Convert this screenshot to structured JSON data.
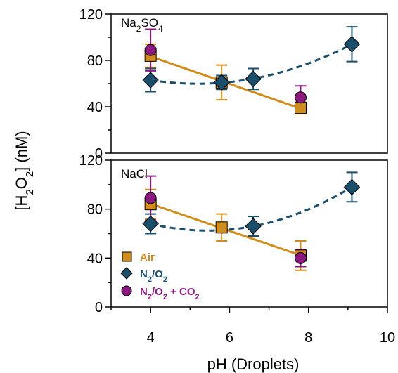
{
  "colors": {
    "air": "#D08C1C",
    "n2o2": "#1A4E6A",
    "n2o2co2": "#8B1A7E"
  },
  "chart_data": {
    "type": "scatter",
    "xlabel": "pH (Droplets)",
    "ylabel": "[H2O2] (nM)",
    "xlim": [
      3,
      10
    ],
    "ylim": [
      0,
      120
    ],
    "x_ticks": [
      "4",
      "6",
      "8",
      "10"
    ],
    "y_ticks": [
      "0",
      "40",
      "80",
      "120"
    ],
    "legend": {
      "placement": "bottom-left of lower panel",
      "entries": [
        {
          "label": "Air",
          "marker": "square",
          "color": "#D08C1C"
        },
        {
          "label": "N2/O2",
          "marker": "diamond",
          "color": "#1A4E6A"
        },
        {
          "label": "N2/O2 + CO2",
          "marker": "circle",
          "color": "#8B1A7E"
        }
      ]
    },
    "panels": [
      {
        "label": "Na2SO4",
        "series": [
          {
            "name": "Air",
            "marker": "square",
            "fit": "linear",
            "fit_range": [
              4,
              7.8
            ],
            "points": [
              {
                "x": 4,
                "y": 84,
                "err": 10
              },
              {
                "x": 5.8,
                "y": 61,
                "err": 15
              },
              {
                "x": 7.8,
                "y": 39,
                "err": 5
              }
            ]
          },
          {
            "name": "N2/O2",
            "marker": "diamond",
            "fit": "quadratic-dashed",
            "fit_range": [
              4,
              9.1
            ],
            "points": [
              {
                "x": 4,
                "y": 63,
                "err": 10
              },
              {
                "x": 5.8,
                "y": 61,
                "err": 6
              },
              {
                "x": 6.6,
                "y": 64,
                "err": 9
              },
              {
                "x": 9.1,
                "y": 94,
                "err": 15
              }
            ]
          },
          {
            "name": "N2/O2 + CO2",
            "marker": "circle",
            "points": [
              {
                "x": 4,
                "y": 89,
                "err": 18
              },
              {
                "x": 7.8,
                "y": 48,
                "err": 10
              }
            ]
          }
        ]
      },
      {
        "label": "NaCl",
        "series": [
          {
            "name": "Air",
            "marker": "square",
            "fit": "linear",
            "fit_range": [
              4,
              7.8
            ],
            "points": [
              {
                "x": 4,
                "y": 84,
                "err": 12
              },
              {
                "x": 5.8,
                "y": 65,
                "err": 11
              },
              {
                "x": 7.8,
                "y": 42,
                "err": 12
              }
            ]
          },
          {
            "name": "N2/O2",
            "marker": "diamond",
            "fit": "quadratic-dashed",
            "fit_range": [
              4,
              9.1
            ],
            "points": [
              {
                "x": 4,
                "y": 68,
                "err": 8
              },
              {
                "x": 6.6,
                "y": 66,
                "err": 8
              },
              {
                "x": 9.1,
                "y": 98,
                "err": 12
              }
            ]
          },
          {
            "name": "N2/O2 + CO2",
            "marker": "circle",
            "points": [
              {
                "x": 4,
                "y": 89,
                "err": 18
              },
              {
                "x": 7.8,
                "y": 40,
                "err": 7
              }
            ]
          }
        ]
      }
    ]
  }
}
